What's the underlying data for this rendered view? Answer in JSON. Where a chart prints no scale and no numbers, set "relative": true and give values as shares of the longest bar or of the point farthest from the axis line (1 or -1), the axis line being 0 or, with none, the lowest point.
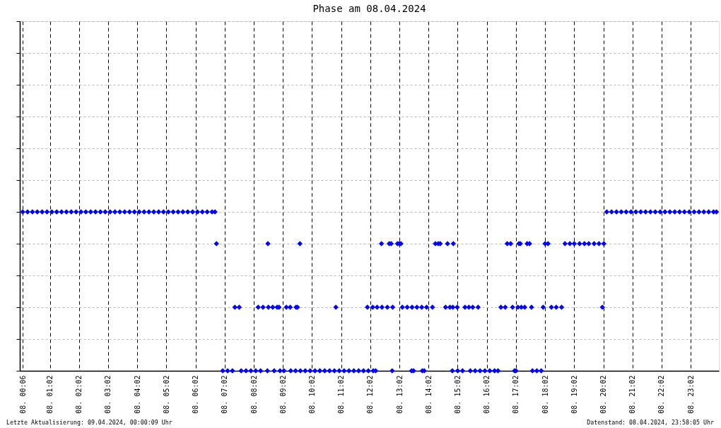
{
  "chart_data": {
    "type": "scatter",
    "title": "Phase am 08.04.2024",
    "annotations": [
      "Letzte Aktualisierung: 09.04.2024, 00:00:09 Uhr",
      "Datenstand: 08.04.2024, 23:58:05 Uhr"
    ],
    "relative": true,
    "xlim": [
      "2024-04-08T00:00",
      "2024-04-09T00:00"
    ],
    "xticks": [
      {
        "value": "2024-04-08T00:06",
        "label": "08. 00:06"
      },
      {
        "value": "2024-04-08T01:02",
        "label": "08. 01:02"
      },
      {
        "value": "2024-04-08T02:02",
        "label": "08. 02:02"
      },
      {
        "value": "2024-04-08T03:02",
        "label": "08. 03:02"
      },
      {
        "value": "2024-04-08T04:02",
        "label": "08. 04:02"
      },
      {
        "value": "2024-04-08T05:02",
        "label": "08. 05:02"
      },
      {
        "value": "2024-04-08T06:02",
        "label": "08. 06:02"
      },
      {
        "value": "2024-04-08T07:02",
        "label": "08. 07:02"
      },
      {
        "value": "2024-04-08T08:02",
        "label": "08. 08:02"
      },
      {
        "value": "2024-04-08T09:02",
        "label": "08. 09:02"
      },
      {
        "value": "2024-04-08T10:02",
        "label": "08. 10:02"
      },
      {
        "value": "2024-04-08T11:02",
        "label": "08. 11:02"
      },
      {
        "value": "2024-04-08T12:02",
        "label": "08. 12:02"
      },
      {
        "value": "2024-04-08T13:02",
        "label": "08. 13:02"
      },
      {
        "value": "2024-04-08T14:02",
        "label": "08. 14:02"
      },
      {
        "value": "2024-04-08T15:02",
        "label": "08. 15:02"
      },
      {
        "value": "2024-04-08T16:02",
        "label": "08. 16:02"
      },
      {
        "value": "2024-04-08T17:02",
        "label": "08. 17:02"
      },
      {
        "value": "2024-04-08T18:02",
        "label": "08. 18:02"
      },
      {
        "value": "2024-04-08T19:02",
        "label": "08. 19:02"
      },
      {
        "value": "2024-04-08T20:02",
        "label": "08. 20:02"
      },
      {
        "value": "2024-04-08T21:02",
        "label": "08. 21:02"
      },
      {
        "value": "2024-04-08T22:02",
        "label": "08. 22:02"
      },
      {
        "value": "2024-04-08T23:02",
        "label": "08. 23:02"
      }
    ],
    "series": [
      {
        "color": "#0000ff",
        "x": [
          "2024-04-08T00:06",
          "2024-04-08T00:16",
          "2024-04-08T00:26",
          "2024-04-08T00:36",
          "2024-04-08T00:46",
          "2024-04-08T00:56",
          "2024-04-08T01:06",
          "2024-04-08T01:16",
          "2024-04-08T01:26",
          "2024-04-08T01:36",
          "2024-04-08T01:46",
          "2024-04-08T01:56",
          "2024-04-08T02:06",
          "2024-04-08T02:16",
          "2024-04-08T02:26",
          "2024-04-08T02:36",
          "2024-04-08T02:46",
          "2024-04-08T02:56",
          "2024-04-08T03:06",
          "2024-04-08T03:16",
          "2024-04-08T03:26",
          "2024-04-08T03:36",
          "2024-04-08T03:46",
          "2024-04-08T03:56",
          "2024-04-08T04:06",
          "2024-04-08T04:16",
          "2024-04-08T04:26",
          "2024-04-08T04:36",
          "2024-04-08T04:46",
          "2024-04-08T04:56",
          "2024-04-08T05:06",
          "2024-04-08T05:16",
          "2024-04-08T05:26",
          "2024-04-08T05:36",
          "2024-04-08T05:46",
          "2024-04-08T05:56",
          "2024-04-08T06:06",
          "2024-04-08T06:16",
          "2024-04-08T06:26",
          "2024-04-08T06:36",
          "2024-04-08T06:42",
          "2024-04-08T20:09",
          "2024-04-08T20:19",
          "2024-04-08T20:29",
          "2024-04-08T20:39",
          "2024-04-08T20:49",
          "2024-04-08T20:59",
          "2024-04-08T21:09",
          "2024-04-08T21:19",
          "2024-04-08T21:29",
          "2024-04-08T21:39",
          "2024-04-08T21:49",
          "2024-04-08T21:59",
          "2024-04-08T22:09",
          "2024-04-08T22:19",
          "2024-04-08T22:29",
          "2024-04-08T22:39",
          "2024-04-08T22:49",
          "2024-04-08T22:59",
          "2024-04-08T23:09",
          "2024-04-08T23:19",
          "2024-04-08T23:29",
          "2024-04-08T23:39",
          "2024-04-08T23:49",
          "2024-04-08T23:55",
          "2024-04-08T06:45",
          "2024-04-08T08:31",
          "2024-04-08T09:37",
          "2024-04-08T12:25",
          "2024-04-08T12:41",
          "2024-04-08T12:45",
          "2024-04-08T12:58",
          "2024-04-08T13:02",
          "2024-04-08T13:05",
          "2024-04-08T14:16",
          "2024-04-08T14:22",
          "2024-04-08T14:26",
          "2024-04-08T14:41",
          "2024-04-08T14:53",
          "2024-04-08T16:44",
          "2024-04-08T16:51",
          "2024-04-08T17:08",
          "2024-04-08T17:11",
          "2024-04-08T17:25",
          "2024-04-08T17:30",
          "2024-04-08T18:02",
          "2024-04-08T18:08",
          "2024-04-08T18:43",
          "2024-04-08T18:53",
          "2024-04-08T19:02",
          "2024-04-08T19:13",
          "2024-04-08T19:23",
          "2024-04-08T19:32",
          "2024-04-08T19:43",
          "2024-04-08T19:53",
          "2024-04-08T20:03",
          "2024-04-08T07:23",
          "2024-04-08T07:32",
          "2024-04-08T08:11",
          "2024-04-08T08:21",
          "2024-04-08T08:32",
          "2024-04-08T08:41",
          "2024-04-08T08:50",
          "2024-04-08T08:54",
          "2024-04-08T09:09",
          "2024-04-08T09:17",
          "2024-04-08T09:29",
          "2024-04-08T09:32",
          "2024-04-08T10:51",
          "2024-04-08T11:56",
          "2024-04-08T12:07",
          "2024-04-08T12:16",
          "2024-04-08T12:26",
          "2024-04-08T12:37",
          "2024-04-08T12:48",
          "2024-04-08T13:08",
          "2024-04-08T13:18",
          "2024-04-08T13:28",
          "2024-04-08T13:38",
          "2024-04-08T13:48",
          "2024-04-08T13:58",
          "2024-04-08T14:10",
          "2024-04-08T14:37",
          "2024-04-08T14:46",
          "2024-04-08T14:52",
          "2024-04-08T15:01",
          "2024-04-08T15:17",
          "2024-04-08T15:25",
          "2024-04-08T15:33",
          "2024-04-08T15:44",
          "2024-04-08T16:31",
          "2024-04-08T16:40",
          "2024-04-08T16:55",
          "2024-04-08T17:06",
          "2024-04-08T17:13",
          "2024-04-08T17:20",
          "2024-04-08T17:34",
          "2024-04-08T17:58",
          "2024-04-08T18:15",
          "2024-04-08T18:25",
          "2024-04-08T18:36",
          "2024-04-08T20:00",
          "2024-04-08T06:58",
          "2024-04-08T07:08",
          "2024-04-08T07:18",
          "2024-04-08T07:36",
          "2024-04-08T07:46",
          "2024-04-08T07:56",
          "2024-04-08T08:06",
          "2024-04-08T08:16",
          "2024-04-08T08:30",
          "2024-04-08T08:44",
          "2024-04-08T08:56",
          "2024-04-08T09:04",
          "2024-04-08T09:18",
          "2024-04-08T09:28",
          "2024-04-08T09:38",
          "2024-04-08T09:48",
          "2024-04-08T09:58",
          "2024-04-08T10:08",
          "2024-04-08T10:18",
          "2024-04-08T10:28",
          "2024-04-08T10:38",
          "2024-04-08T10:48",
          "2024-04-08T10:58",
          "2024-04-08T11:08",
          "2024-04-08T11:18",
          "2024-04-08T11:28",
          "2024-04-08T11:38",
          "2024-04-08T11:48",
          "2024-04-08T11:58",
          "2024-04-08T12:08",
          "2024-04-08T12:13",
          "2024-04-08T12:47",
          "2024-04-08T13:27",
          "2024-04-08T13:31",
          "2024-04-08T13:49",
          "2024-04-08T13:53",
          "2024-04-08T14:51",
          "2024-04-08T15:02",
          "2024-04-08T15:12",
          "2024-04-08T15:28",
          "2024-04-08T15:38",
          "2024-04-08T15:48",
          "2024-04-08T15:58",
          "2024-04-08T16:08",
          "2024-04-08T16:18",
          "2024-04-08T16:25",
          "2024-04-08T16:59",
          "2024-04-08T17:02",
          "2024-04-08T17:36",
          "2024-04-08T17:45",
          "2024-04-08T17:54"
        ],
        "values": [
          1,
          1,
          1,
          1,
          1,
          1,
          1,
          1,
          1,
          1,
          1,
          1,
          1,
          1,
          1,
          1,
          1,
          1,
          1,
          1,
          1,
          1,
          1,
          1,
          1,
          1,
          1,
          1,
          1,
          1,
          1,
          1,
          1,
          1,
          1,
          1,
          1,
          1,
          1,
          1,
          1,
          1,
          1,
          1,
          1,
          1,
          1,
          1,
          1,
          1,
          1,
          1,
          1,
          1,
          1,
          1,
          1,
          1,
          1,
          1,
          1,
          1,
          1,
          1,
          1,
          0.8,
          0.8,
          0.8,
          0.8,
          0.8,
          0.8,
          0.8,
          0.8,
          0.8,
          0.8,
          0.8,
          0.8,
          0.8,
          0.8,
          0.8,
          0.8,
          0.8,
          0.8,
          0.8,
          0.8,
          0.8,
          0.8,
          0.8,
          0.8,
          0.8,
          0.8,
          0.8,
          0.8,
          0.8,
          0.8,
          0.8,
          0.4,
          0.4,
          0.4,
          0.4,
          0.4,
          0.4,
          0.4,
          0.4,
          0.4,
          0.4,
          0.4,
          0.4,
          0.4,
          0.4,
          0.4,
          0.4,
          0.4,
          0.4,
          0.4,
          0.4,
          0.4,
          0.4,
          0.4,
          0.4,
          0.4,
          0.4,
          0.4,
          0.4,
          0.4,
          0.4,
          0.4,
          0.4,
          0.4,
          0.4,
          0.4,
          0.4,
          0.4,
          0.4,
          0.4,
          0.4,
          0.4,
          0.4,
          0.4,
          0.4,
          0.4,
          0.4,
          0,
          0,
          0,
          0,
          0,
          0,
          0,
          0,
          0,
          0,
          0,
          0,
          0,
          0,
          0,
          0,
          0,
          0,
          0,
          0,
          0,
          0,
          0,
          0,
          0,
          0,
          0,
          0,
          0,
          0,
          0,
          0,
          0,
          0,
          0,
          0,
          0,
          0,
          0,
          0,
          0,
          0,
          0,
          0,
          0,
          0,
          0,
          0,
          0,
          0,
          0
        ]
      }
    ],
    "marker": "diamond",
    "grid": true,
    "tick_labels": "x"
  }
}
